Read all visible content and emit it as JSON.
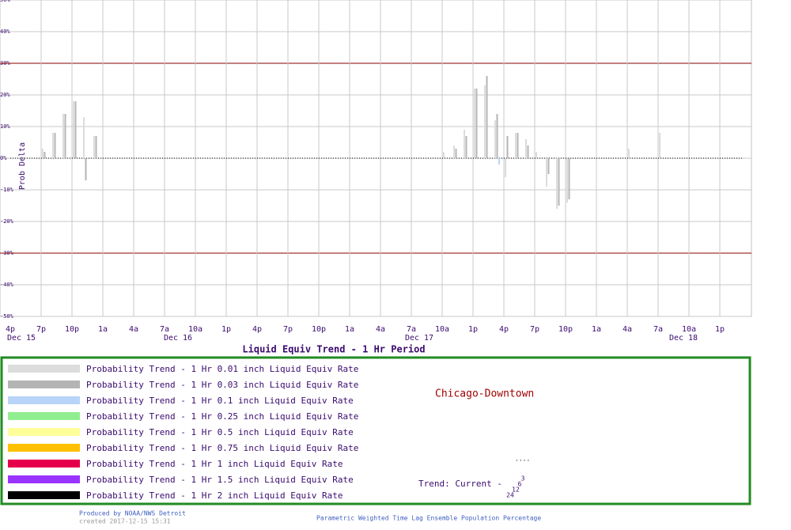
{
  "chart_data": {
    "type": "bar",
    "title": "Liquid Equiv Trend -  1 Hr Period",
    "y_label": "Prob Delta",
    "categories": [
      "4p",
      null,
      null,
      "7p",
      null,
      null,
      "10p",
      null,
      null,
      "1a",
      null,
      null,
      "4a",
      null,
      null,
      "7a",
      null,
      null,
      "10a",
      null,
      null,
      "1p",
      null,
      null,
      "4p",
      null,
      null,
      "7p",
      null,
      null,
      "10p",
      null,
      null,
      "1a",
      null,
      null,
      "4a",
      null,
      null,
      "7a",
      null,
      null,
      "10a",
      null,
      null,
      "1p",
      null,
      null,
      "4p",
      null,
      null,
      "7p",
      null,
      null,
      "10p",
      null,
      null,
      "1a",
      null,
      null,
      "4a",
      null,
      null,
      "7a",
      null,
      null,
      "10a",
      null,
      null,
      "1p",
      null,
      null,
      null
    ],
    "date_labels": [
      "Dec 15",
      "Dec 16",
      "Dec 17",
      "Dec 18"
    ],
    "ylim": [
      -50,
      50
    ],
    "yticks": [
      {
        "value": 50,
        "label": "50%"
      },
      {
        "value": 40,
        "label": "40%"
      },
      {
        "value": 30,
        "label": "30%"
      },
      {
        "value": 20,
        "label": "20%"
      },
      {
        "value": 10,
        "label": "10%"
      },
      {
        "value": 0,
        "label": "0%"
      },
      {
        "value": -10,
        "label": "-10%"
      },
      {
        "value": -20,
        "label": "-20%"
      },
      {
        "value": -30,
        "label": "-30%"
      },
      {
        "value": -40,
        "label": "-40%"
      },
      {
        "value": -50,
        "label": "-50%"
      }
    ],
    "grid": true,
    "zero_line": true,
    "threshold_lines": [
      30,
      -30
    ],
    "threshold_color": "#8b0000",
    "series": [
      {
        "name": "Probability Trend -  1 Hr 0.01 inch Liquid Equiv Rate",
        "color": "#dcdcdc",
        "values": [
          null,
          null,
          null,
          3,
          8,
          14,
          18,
          13,
          7,
          null,
          null,
          null,
          null,
          null,
          null,
          null,
          null,
          null,
          null,
          null,
          null,
          null,
          null,
          null,
          null,
          null,
          null,
          null,
          null,
          null,
          null,
          null,
          null,
          null,
          null,
          null,
          null,
          null,
          null,
          null,
          null,
          null,
          2,
          4,
          9,
          22,
          23,
          12,
          -6,
          8,
          6,
          2,
          -9,
          -16,
          -14,
          null,
          null,
          null,
          null,
          null,
          3,
          null,
          null,
          8,
          null,
          null,
          null,
          null,
          null,
          null,
          null,
          null,
          null
        ]
      },
      {
        "name": "Probability Trend -  1 Hr 0.03 inch Liquid Equiv Rate",
        "color": "#b4b4b4",
        "values": [
          null,
          null,
          null,
          2,
          8,
          14,
          18,
          -7,
          7,
          null,
          null,
          null,
          null,
          null,
          null,
          null,
          null,
          null,
          null,
          null,
          null,
          null,
          null,
          null,
          null,
          null,
          null,
          null,
          null,
          null,
          null,
          null,
          null,
          null,
          null,
          null,
          null,
          null,
          null,
          null,
          null,
          null,
          null,
          3,
          7,
          22,
          26,
          14,
          7,
          8,
          4,
          null,
          -5,
          -15,
          -13,
          null,
          null,
          null,
          null,
          null,
          null,
          null,
          null,
          null,
          null,
          null,
          null,
          null,
          null,
          null,
          null,
          null,
          null
        ]
      },
      {
        "name": "Probability Trend -  1 Hr 0.1 inch Liquid Equiv Rate",
        "color": "#b8d4f8",
        "values": [
          null,
          null,
          null,
          null,
          null,
          null,
          null,
          null,
          null,
          null,
          null,
          null,
          null,
          null,
          null,
          null,
          null,
          null,
          null,
          null,
          null,
          null,
          null,
          null,
          null,
          null,
          null,
          null,
          null,
          null,
          null,
          null,
          null,
          null,
          null,
          null,
          null,
          null,
          null,
          null,
          null,
          null,
          null,
          null,
          null,
          null,
          null,
          -2,
          null,
          null,
          null,
          null,
          null,
          null,
          null,
          null,
          null,
          null,
          null,
          null,
          null,
          null,
          null,
          null,
          null,
          null,
          null,
          null,
          null,
          null,
          null,
          null,
          null
        ]
      },
      {
        "name": "Probability Trend -  1 Hr 0.25 inch Liquid Equiv Rate",
        "color": "#90ee90",
        "values": [
          null,
          null,
          null,
          null,
          null,
          null,
          null,
          null,
          null,
          null,
          null,
          null,
          null,
          null,
          null,
          null,
          null,
          null,
          null,
          null,
          null,
          null,
          null,
          null,
          null,
          null,
          null,
          null,
          null,
          null,
          null,
          null,
          null,
          null,
          null,
          null,
          null,
          null,
          null,
          null,
          null,
          null,
          null,
          null,
          null,
          null,
          null,
          null,
          null,
          null,
          null,
          null,
          null,
          null,
          null,
          null,
          null,
          null,
          null,
          null,
          null,
          null,
          null,
          null,
          null,
          null,
          null,
          null,
          null,
          null,
          null,
          null,
          null
        ]
      },
      {
        "name": "Probability Trend -  1 Hr 0.5 inch Liquid Equiv Rate",
        "color": "#ffff99",
        "values": [
          null,
          null,
          null,
          null,
          null,
          null,
          null,
          null,
          null,
          null,
          null,
          null,
          null,
          null,
          null,
          null,
          null,
          null,
          null,
          null,
          null,
          null,
          null,
          null,
          null,
          null,
          null,
          null,
          null,
          null,
          null,
          null,
          null,
          null,
          null,
          null,
          null,
          null,
          null,
          null,
          null,
          null,
          null,
          null,
          null,
          null,
          null,
          null,
          null,
          null,
          null,
          null,
          null,
          null,
          null,
          null,
          null,
          null,
          null,
          null,
          null,
          null,
          null,
          null,
          null,
          null,
          null,
          null,
          null,
          null,
          null,
          null,
          null
        ]
      },
      {
        "name": "Probability Trend -  1 Hr 0.75 inch Liquid Equiv Rate",
        "color": "#ffc000",
        "values": [
          null,
          null,
          null,
          null,
          null,
          null,
          null,
          null,
          null,
          null,
          null,
          null,
          null,
          null,
          null,
          null,
          null,
          null,
          null,
          null,
          null,
          null,
          null,
          null,
          null,
          null,
          null,
          null,
          null,
          null,
          null,
          null,
          null,
          null,
          null,
          null,
          null,
          null,
          null,
          null,
          null,
          null,
          null,
          null,
          null,
          null,
          null,
          null,
          null,
          null,
          null,
          null,
          null,
          null,
          null,
          null,
          null,
          null,
          null,
          null,
          null,
          null,
          null,
          null,
          null,
          null,
          null,
          null,
          null,
          null,
          null,
          null,
          null
        ]
      },
      {
        "name": "Probability Trend -  1 Hr 1 inch Liquid Equiv Rate",
        "color": "#e6004c",
        "values": [
          null,
          null,
          null,
          null,
          null,
          null,
          null,
          null,
          null,
          null,
          null,
          null,
          null,
          null,
          null,
          null,
          null,
          null,
          null,
          null,
          null,
          null,
          null,
          null,
          null,
          null,
          null,
          null,
          null,
          null,
          null,
          null,
          null,
          null,
          null,
          null,
          null,
          null,
          null,
          null,
          null,
          null,
          null,
          null,
          null,
          null,
          null,
          null,
          null,
          null,
          null,
          null,
          null,
          null,
          null,
          null,
          null,
          null,
          null,
          null,
          null,
          null,
          null,
          null,
          null,
          null,
          null,
          null,
          null,
          null,
          null,
          null,
          null
        ]
      },
      {
        "name": "Probability Trend -  1 Hr 1.5 inch Liquid Equiv Rate",
        "color": "#9933ff",
        "values": [
          null,
          null,
          null,
          null,
          null,
          null,
          null,
          null,
          null,
          null,
          null,
          null,
          null,
          null,
          null,
          null,
          null,
          null,
          null,
          null,
          null,
          null,
          null,
          null,
          null,
          null,
          null,
          null,
          null,
          null,
          null,
          null,
          null,
          null,
          null,
          null,
          null,
          null,
          null,
          null,
          null,
          null,
          null,
          null,
          null,
          null,
          null,
          null,
          null,
          null,
          null,
          null,
          null,
          null,
          null,
          null,
          null,
          null,
          null,
          null,
          null,
          null,
          null,
          null,
          null,
          null,
          null,
          null,
          null,
          null,
          null,
          null,
          null
        ]
      },
      {
        "name": "Probability Trend -  1 Hr 2 inch Liquid Equiv Rate",
        "color": "#000000",
        "values": [
          null,
          null,
          null,
          null,
          null,
          null,
          null,
          null,
          null,
          null,
          null,
          null,
          null,
          null,
          null,
          null,
          null,
          null,
          null,
          null,
          null,
          null,
          null,
          null,
          null,
          null,
          null,
          null,
          null,
          null,
          null,
          null,
          null,
          null,
          null,
          null,
          null,
          null,
          null,
          null,
          null,
          null,
          null,
          null,
          null,
          null,
          null,
          null,
          null,
          null,
          null,
          null,
          null,
          null,
          null,
          null,
          null,
          null,
          null,
          null,
          null,
          null,
          null,
          null,
          null,
          null,
          null,
          null,
          null,
          null,
          null,
          null,
          null
        ]
      }
    ],
    "location": "Chicago-Downtown",
    "trend_label": "Trend: Current -",
    "trend_hours": [
      "3",
      "6",
      "12",
      "24"
    ],
    "credit": "Produced by NOAA/NWS Detroit",
    "created": "created 2017-12-15 15:31",
    "footer": "Parametric Weighted Time Lag Ensemble Population Percentage"
  }
}
